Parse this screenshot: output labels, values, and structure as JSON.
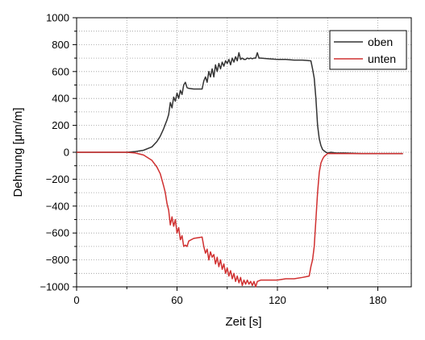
{
  "chart_data": {
    "type": "line",
    "xlabel": "Zeit [s]",
    "ylabel": "Dehnung [μm/m]",
    "xlim": [
      0,
      200
    ],
    "ylim": [
      -1000,
      1000
    ],
    "x_ticks": [
      0,
      60,
      120,
      180
    ],
    "x_tick_labels": [
      "0",
      "60",
      "120",
      "180"
    ],
    "y_ticks": [
      -1000,
      -800,
      -600,
      -400,
      -200,
      0,
      200,
      400,
      600,
      800,
      1000
    ],
    "y_tick_labels": [
      "−1000",
      "−800",
      "−600",
      "−400",
      "−200",
      "0",
      "200",
      "400",
      "600",
      "800",
      "1000"
    ],
    "grid": "dotted horizontal and vertical",
    "legend_position": "top-right",
    "series": [
      {
        "name": "oben",
        "color": "#333333",
        "x": [
          0,
          30,
          35,
          40,
          45,
          48,
          50,
          52,
          54,
          55,
          56,
          57,
          58,
          59,
          60,
          61,
          62,
          63,
          64,
          65,
          66,
          67,
          70,
          75,
          76,
          77,
          78,
          79,
          80,
          81,
          82,
          83,
          84,
          85,
          86,
          87,
          88,
          89,
          90,
          91,
          92,
          93,
          94,
          95,
          96,
          97,
          98,
          99,
          100,
          101,
          102,
          103,
          104,
          105,
          106,
          107,
          108,
          109,
          110,
          115,
          120,
          125,
          130,
          135,
          140,
          141,
          142,
          143,
          144,
          145,
          146,
          147,
          148,
          149,
          150,
          152,
          155,
          160,
          170,
          180,
          195
        ],
        "y": [
          0,
          0,
          5,
          15,
          40,
          80,
          120,
          175,
          240,
          280,
          370,
          330,
          410,
          380,
          440,
          400,
          460,
          430,
          500,
          520,
          480,
          475,
          470,
          470,
          530,
          560,
          520,
          600,
          560,
          620,
          560,
          650,
          600,
          660,
          620,
          670,
          640,
          680,
          660,
          690,
          650,
          700,
          670,
          710,
          680,
          740,
          690,
          700,
          690,
          690,
          700,
          695,
          700,
          695,
          700,
          700,
          740,
          700,
          700,
          695,
          690,
          690,
          685,
          685,
          680,
          620,
          550,
          400,
          200,
          100,
          50,
          20,
          10,
          0,
          -5,
          0,
          -5,
          -5,
          -10,
          -10,
          -10
        ]
      },
      {
        "name": "unten",
        "color": "#d03030",
        "x": [
          0,
          30,
          35,
          40,
          45,
          48,
          50,
          52,
          53,
          54,
          55,
          56,
          57,
          58,
          59,
          60,
          61,
          62,
          63,
          64,
          65,
          66,
          67,
          70,
          75,
          76,
          77,
          78,
          79,
          80,
          81,
          82,
          83,
          84,
          85,
          86,
          87,
          88,
          89,
          90,
          91,
          92,
          93,
          94,
          95,
          96,
          97,
          98,
          99,
          100,
          101,
          102,
          103,
          104,
          105,
          106,
          107,
          108,
          110,
          115,
          120,
          125,
          130,
          135,
          139,
          140,
          141,
          142,
          143,
          144,
          145,
          146,
          147,
          148,
          149,
          150,
          152,
          155,
          160,
          170,
          180,
          195
        ],
        "y": [
          0,
          0,
          -5,
          -20,
          -60,
          -110,
          -160,
          -250,
          -300,
          -380,
          -430,
          -540,
          -480,
          -550,
          -500,
          -600,
          -560,
          -650,
          -620,
          -700,
          -690,
          -700,
          -660,
          -640,
          -630,
          -700,
          -750,
          -720,
          -800,
          -740,
          -780,
          -760,
          -830,
          -780,
          -850,
          -800,
          -870,
          -830,
          -900,
          -860,
          -920,
          -880,
          -940,
          -900,
          -960,
          -920,
          -970,
          -930,
          -990,
          -950,
          -980,
          -950,
          -980,
          -960,
          -990,
          -960,
          -1000,
          -960,
          -950,
          -950,
          -950,
          -940,
          -940,
          -930,
          -920,
          -850,
          -800,
          -700,
          -500,
          -300,
          -150,
          -80,
          -50,
          -30,
          -20,
          -10,
          -10,
          -10,
          -10,
          -10,
          -10,
          -10
        ]
      }
    ]
  }
}
